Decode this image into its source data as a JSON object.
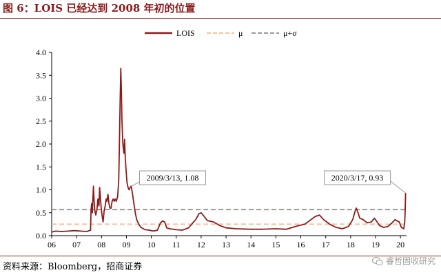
{
  "header": {
    "title": "图 6：LOIS 已经达到 2008 年初的位置"
  },
  "footer": {
    "source": "资料来源：Bloomberg，招商证券",
    "watermark": "睿哲固收研究"
  },
  "colors": {
    "title": "#8b1a1a",
    "lois": "#8b1a1a",
    "mu": "#f4c39a",
    "mu_sigma": "#999999"
  },
  "chart_data": {
    "type": "line",
    "x_range": [
      "2006-01-01",
      "2020-03-31"
    ],
    "ylim": [
      0,
      4
    ],
    "y_ticks": [
      "0.0",
      "0.5",
      "1.0",
      "1.5",
      "2.0",
      "2.5",
      "3.0",
      "3.5",
      "4.0"
    ],
    "x_ticks": [
      "06",
      "07",
      "08",
      "09",
      "10",
      "11",
      "12",
      "13",
      "14",
      "15",
      "16",
      "17",
      "18",
      "19",
      "20"
    ],
    "grid": false,
    "legend_position": "top",
    "series": [
      {
        "name": "LOIS",
        "style": "line",
        "points": [
          [
            "2006-01-01",
            0.08
          ],
          [
            "2006-03-01",
            0.1
          ],
          [
            "2006-06-01",
            0.09
          ],
          [
            "2006-09-01",
            0.1
          ],
          [
            "2006-12-01",
            0.11
          ],
          [
            "2007-03-01",
            0.1
          ],
          [
            "2007-06-01",
            0.09
          ],
          [
            "2007-07-25",
            0.12
          ],
          [
            "2007-08-01",
            0.55
          ],
          [
            "2007-08-10",
            0.7
          ],
          [
            "2007-08-20",
            0.5
          ],
          [
            "2007-09-05",
            1.08
          ],
          [
            "2007-09-15",
            0.75
          ],
          [
            "2007-09-25",
            0.55
          ],
          [
            "2007-10-10",
            0.45
          ],
          [
            "2007-10-25",
            0.55
          ],
          [
            "2007-11-10",
            0.8
          ],
          [
            "2007-11-25",
            0.65
          ],
          [
            "2007-12-05",
            1.05
          ],
          [
            "2007-12-15",
            0.85
          ],
          [
            "2007-12-28",
            0.6
          ],
          [
            "2008-01-10",
            0.45
          ],
          [
            "2008-01-25",
            0.3
          ],
          [
            "2008-02-10",
            0.55
          ],
          [
            "2008-02-25",
            0.65
          ],
          [
            "2008-03-10",
            0.8
          ],
          [
            "2008-03-20",
            0.75
          ],
          [
            "2008-04-05",
            0.9
          ],
          [
            "2008-04-20",
            0.7
          ],
          [
            "2008-05-05",
            0.6
          ],
          [
            "2008-05-20",
            0.6
          ],
          [
            "2008-06-05",
            0.75
          ],
          [
            "2008-06-20",
            0.8
          ],
          [
            "2008-07-05",
            0.75
          ],
          [
            "2008-07-20",
            0.8
          ],
          [
            "2008-08-05",
            0.75
          ],
          [
            "2008-08-25",
            0.85
          ],
          [
            "2008-09-10",
            1.2
          ],
          [
            "2008-09-20",
            2.0
          ],
          [
            "2008-10-01",
            3.0
          ],
          [
            "2008-10-10",
            3.65
          ],
          [
            "2008-10-18",
            3.2
          ],
          [
            "2008-10-28",
            2.5
          ],
          [
            "2008-11-10",
            2.0
          ],
          [
            "2008-11-25",
            1.8
          ],
          [
            "2008-12-05",
            2.1
          ],
          [
            "2008-12-15",
            1.7
          ],
          [
            "2008-12-28",
            1.4
          ],
          [
            "2009-01-10",
            1.15
          ],
          [
            "2009-01-25",
            1.05
          ],
          [
            "2009-02-10",
            1.0
          ],
          [
            "2009-02-25",
            1.05
          ],
          [
            "2009-03-13",
            1.08
          ],
          [
            "2009-04-01",
            0.9
          ],
          [
            "2009-04-20",
            0.7
          ],
          [
            "2009-05-10",
            0.5
          ],
          [
            "2009-06-01",
            0.35
          ],
          [
            "2009-07-01",
            0.25
          ],
          [
            "2009-08-01",
            0.18
          ],
          [
            "2009-10-01",
            0.13
          ],
          [
            "2009-12-01",
            0.12
          ],
          [
            "2010-02-01",
            0.1
          ],
          [
            "2010-04-01",
            0.12
          ],
          [
            "2010-05-15",
            0.28
          ],
          [
            "2010-06-15",
            0.32
          ],
          [
            "2010-07-15",
            0.3
          ],
          [
            "2010-08-15",
            0.17
          ],
          [
            "2010-10-01",
            0.15
          ],
          [
            "2011-01-01",
            0.13
          ],
          [
            "2011-04-01",
            0.12
          ],
          [
            "2011-07-01",
            0.17
          ],
          [
            "2011-09-01",
            0.28
          ],
          [
            "2011-10-15",
            0.35
          ],
          [
            "2011-12-01",
            0.48
          ],
          [
            "2012-01-01",
            0.5
          ],
          [
            "2012-02-15",
            0.42
          ],
          [
            "2012-04-01",
            0.33
          ],
          [
            "2012-07-01",
            0.3
          ],
          [
            "2012-10-01",
            0.22
          ],
          [
            "2013-01-01",
            0.17
          ],
          [
            "2013-06-01",
            0.15
          ],
          [
            "2014-01-01",
            0.14
          ],
          [
            "2014-06-01",
            0.14
          ],
          [
            "2015-01-01",
            0.15
          ],
          [
            "2015-06-01",
            0.14
          ],
          [
            "2015-12-01",
            0.22
          ],
          [
            "2016-03-01",
            0.25
          ],
          [
            "2016-06-01",
            0.35
          ],
          [
            "2016-08-01",
            0.42
          ],
          [
            "2016-10-01",
            0.45
          ],
          [
            "2016-12-01",
            0.35
          ],
          [
            "2017-03-01",
            0.25
          ],
          [
            "2017-06-01",
            0.18
          ],
          [
            "2017-09-01",
            0.15
          ],
          [
            "2017-12-01",
            0.2
          ],
          [
            "2018-02-01",
            0.35
          ],
          [
            "2018-03-10",
            0.55
          ],
          [
            "2018-03-25",
            0.6
          ],
          [
            "2018-04-15",
            0.52
          ],
          [
            "2018-05-15",
            0.38
          ],
          [
            "2018-07-01",
            0.35
          ],
          [
            "2018-09-01",
            0.28
          ],
          [
            "2018-11-01",
            0.3
          ],
          [
            "2018-12-15",
            0.38
          ],
          [
            "2019-01-15",
            0.32
          ],
          [
            "2019-03-01",
            0.22
          ],
          [
            "2019-05-01",
            0.18
          ],
          [
            "2019-07-01",
            0.2
          ],
          [
            "2019-09-01",
            0.28
          ],
          [
            "2019-10-15",
            0.35
          ],
          [
            "2019-11-15",
            0.32
          ],
          [
            "2019-12-15",
            0.3
          ],
          [
            "2020-01-15",
            0.18
          ],
          [
            "2020-02-20",
            0.15
          ],
          [
            "2020-03-05",
            0.3
          ],
          [
            "2020-03-12",
            0.6
          ],
          [
            "2020-03-17",
            0.93
          ]
        ]
      },
      {
        "name": "μ",
        "style": "dashed",
        "value": 0.25
      },
      {
        "name": "μ+σ",
        "style": "dashed",
        "value": 0.57
      }
    ],
    "annotations": [
      {
        "label": "2009/3/13, 1.08",
        "x": "2009-03-13",
        "y": 1.08
      },
      {
        "label": "2020/3/17, 0.93",
        "x": "2020-03-17",
        "y": 0.93
      }
    ]
  }
}
